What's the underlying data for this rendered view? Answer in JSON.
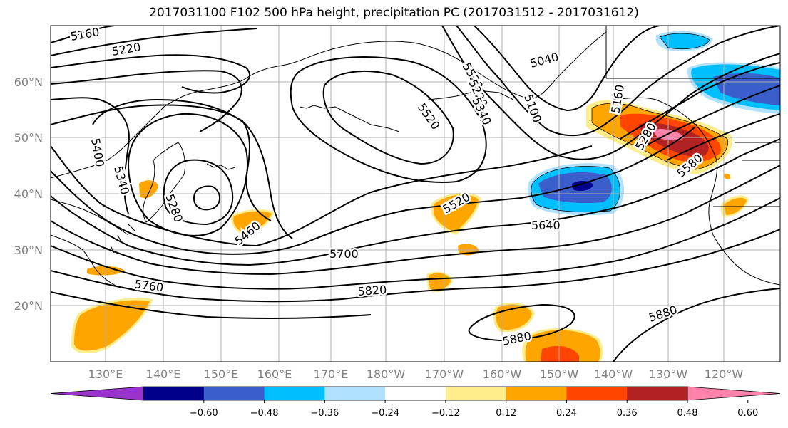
{
  "title": "2017031100 F102 500 hPa height, precipitation PC (2017031512 - 2017031612)",
  "map": {
    "lat_ticks": [
      "60°N",
      "50°N",
      "40°N",
      "30°N",
      "20°N"
    ],
    "lon_ticks": [
      "130°E",
      "140°E",
      "150°E",
      "160°E",
      "170°E",
      "180°W",
      "170°W",
      "160°W",
      "150°W",
      "140°W",
      "130°W",
      "120°W"
    ],
    "gridline_color": "#b0b0b0",
    "land_outline": "coastline"
  },
  "contour_labels": [
    {
      "id": "c5160a",
      "text": "5160"
    },
    {
      "id": "c5220a",
      "text": "5220"
    },
    {
      "id": "c5400",
      "text": "5400"
    },
    {
      "id": "c5340",
      "text": "5340"
    },
    {
      "id": "c5280",
      "text": "5280"
    },
    {
      "id": "c5460",
      "text": "5460"
    },
    {
      "id": "c5520a",
      "text": "5520"
    },
    {
      "id": "c5520b",
      "text": "5520"
    },
    {
      "id": "c5520c",
      "text": "5520"
    },
    {
      "id": "c5640",
      "text": "5640"
    },
    {
      "id": "c5700",
      "text": "5700"
    },
    {
      "id": "c5760",
      "text": "5760"
    },
    {
      "id": "c5820",
      "text": "5820"
    },
    {
      "id": "c5880a",
      "text": "5880"
    },
    {
      "id": "c5880b",
      "text": "5880"
    },
    {
      "id": "c5040",
      "text": "5040"
    },
    {
      "id": "c5100",
      "text": "5100"
    },
    {
      "id": "c5160b",
      "text": "5160"
    },
    {
      "id": "c5280b",
      "text": "5280"
    },
    {
      "id": "c5580",
      "text": "5580"
    },
    {
      "id": "c5220b",
      "text": "5220"
    },
    {
      "id": "c5340b",
      "text": "5340"
    }
  ],
  "colorbar": {
    "colors": [
      "#9933cc",
      "#00008b",
      "#3a5fcd",
      "#00bfff",
      "#b0e2ff",
      "#ffffff",
      "#ffec8b",
      "#ffa500",
      "#ff4500",
      "#b22222",
      "#ff82ab"
    ],
    "labels": [
      "−0.60",
      "−0.48",
      "−0.36",
      "−0.24",
      "−0.12",
      "0.12",
      "0.24",
      "0.36",
      "0.48",
      "0.60"
    ]
  }
}
